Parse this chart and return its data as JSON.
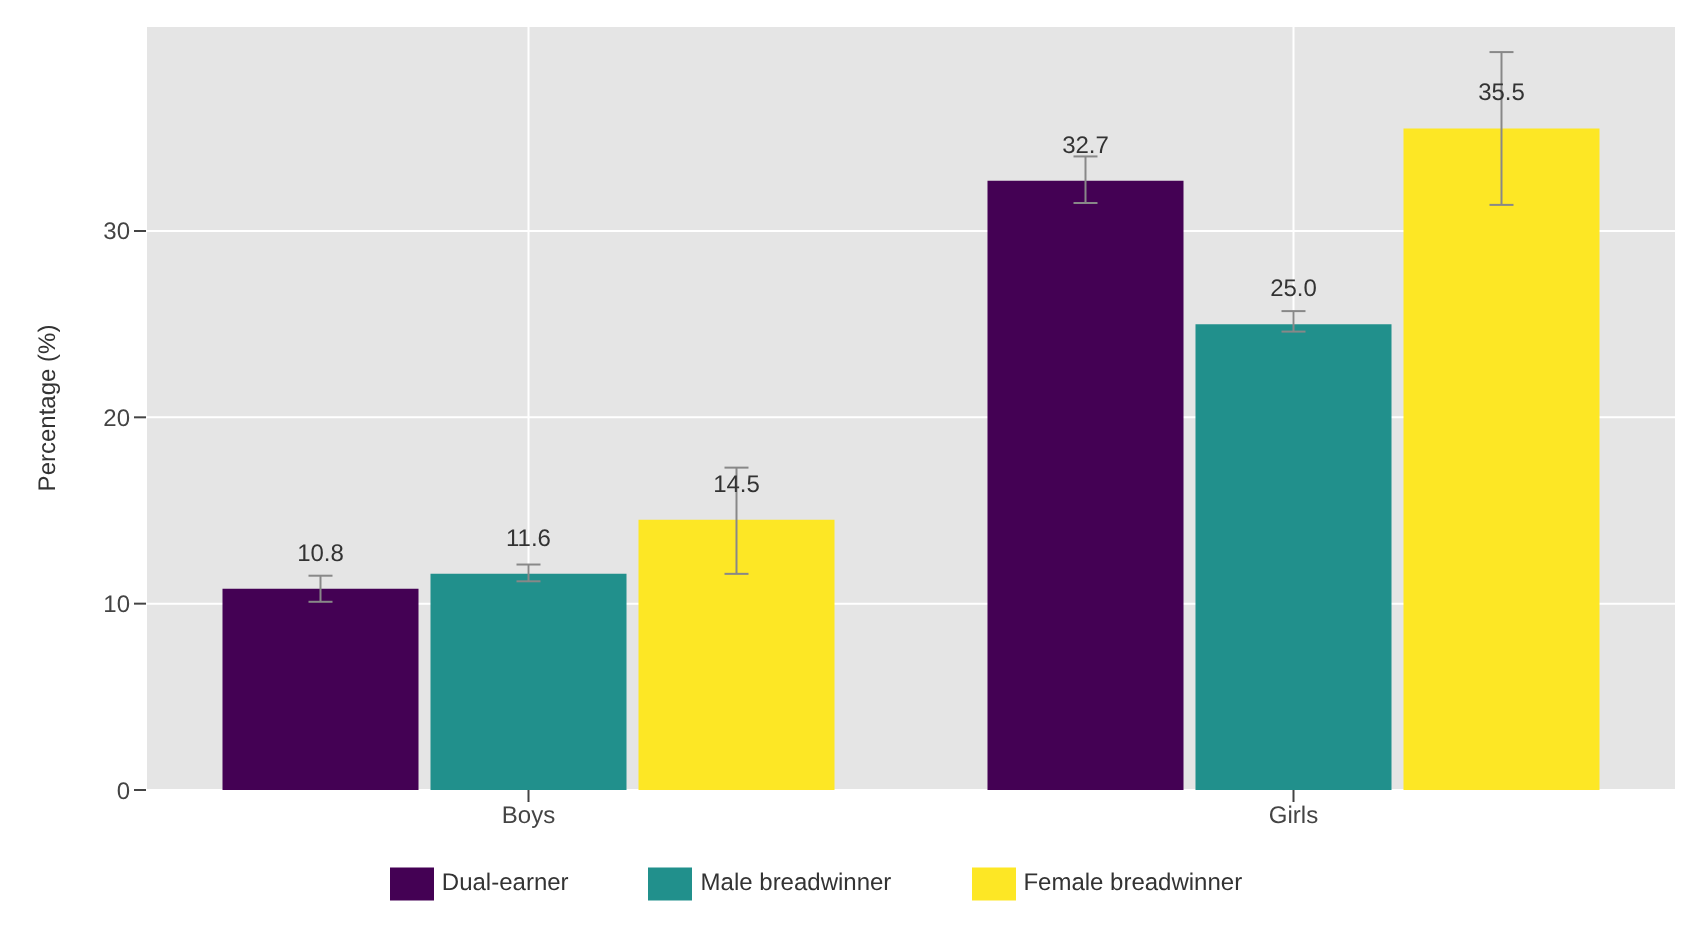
{
  "chart_data": {
    "type": "bar",
    "ylabel": "Percentage (%)",
    "categories": [
      "Boys",
      "Girls"
    ],
    "series": [
      {
        "name": "Dual-earner",
        "color": "#440154",
        "values": [
          10.8,
          32.7
        ],
        "value_labels": [
          "10.8",
          "32.7"
        ],
        "errors": [
          [
            10.1,
            11.5
          ],
          [
            31.5,
            34.0
          ]
        ]
      },
      {
        "name": "Male breadwinner",
        "color": "#21908c",
        "values": [
          11.6,
          25.0
        ],
        "value_labels": [
          "11.6",
          "25.0"
        ],
        "errors": [
          [
            11.2,
            12.1
          ],
          [
            24.6,
            25.7
          ]
        ]
      },
      {
        "name": "Female breadwinner",
        "color": "#fde725",
        "values": [
          14.5,
          35.5
        ],
        "value_labels": [
          "14.5",
          "35.5"
        ],
        "errors": [
          [
            11.6,
            17.3
          ],
          [
            31.4,
            39.6
          ]
        ]
      }
    ],
    "ylim": [
      0,
      41
    ],
    "yticks": [
      0,
      10,
      20,
      30
    ],
    "grid": true,
    "legend": "bottom"
  }
}
